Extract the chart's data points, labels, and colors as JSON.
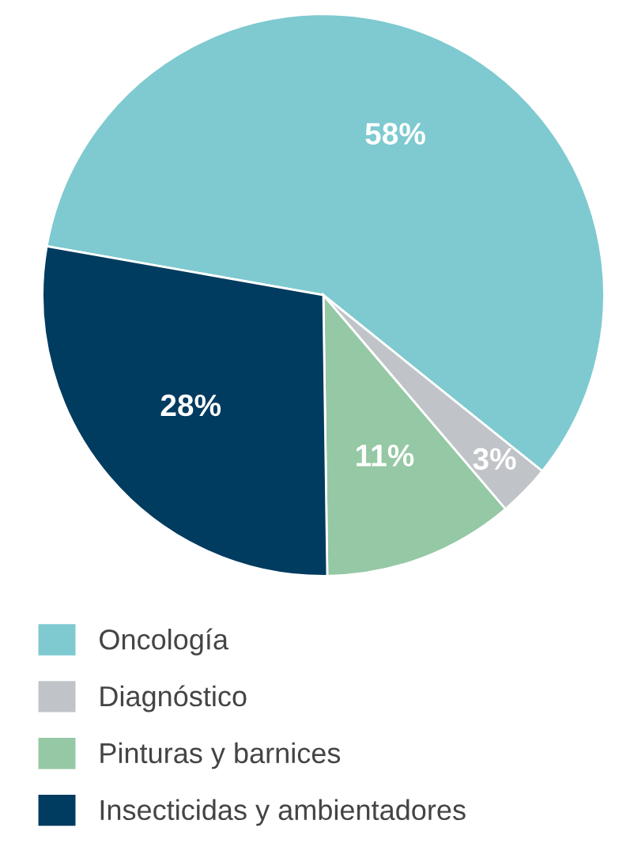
{
  "chart_data": {
    "type": "pie",
    "categories": [
      "Oncología",
      "Diagnóstico",
      "Pinturas y barnices",
      "Insecticidas y ambientadores"
    ],
    "values": [
      58,
      3,
      11,
      28
    ],
    "colors": [
      "#7ecad0",
      "#c0c4c8",
      "#95c8a4",
      "#003b60"
    ],
    "value_labels": [
      "58%",
      "3%",
      "11%",
      "28%"
    ],
    "legend": "bottom"
  }
}
